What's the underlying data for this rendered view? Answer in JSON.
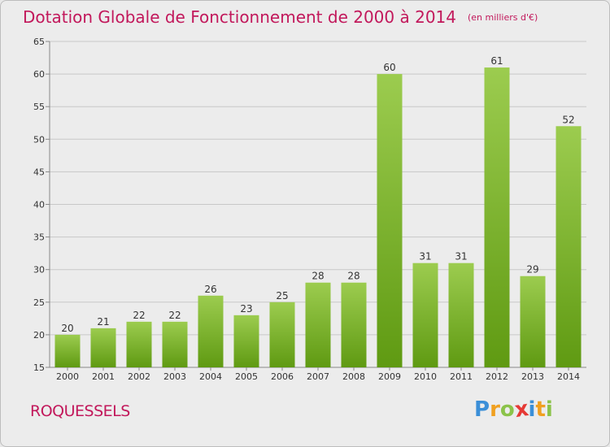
{
  "title": "Dotation Globale de Fonctionnement de 2000 à 2014",
  "unit_note": "(en milliers d'€)",
  "commune": "ROQUESSELS",
  "brand": {
    "text": "Proxiti",
    "letters": [
      {
        "char": "P",
        "color": "#3b8fd8"
      },
      {
        "char": "r",
        "color": "#f0a020"
      },
      {
        "char": "o",
        "color": "#8bc34a"
      },
      {
        "char": "x",
        "color": "#e53935"
      },
      {
        "char": "i",
        "color": "#3b8fd8"
      },
      {
        "char": "t",
        "color": "#f0a020"
      },
      {
        "char": "i",
        "color": "#8bc34a"
      }
    ]
  },
  "colors": {
    "title": "#c2185b",
    "bar_top": "#9ccc4f",
    "bar_bottom": "#5f9a12",
    "grid": "#c8c8c8",
    "axis_text": "#333333"
  },
  "chart_data": {
    "type": "bar",
    "title": "Dotation Globale de Fonctionnement de 2000 à 2014",
    "subtitle": "(en milliers d'€)",
    "xlabel": "",
    "ylabel": "",
    "categories": [
      "2000",
      "2001",
      "2002",
      "2003",
      "2004",
      "2005",
      "2006",
      "2007",
      "2008",
      "2009",
      "2010",
      "2011",
      "2012",
      "2013",
      "2014"
    ],
    "values": [
      20,
      21,
      22,
      22,
      26,
      23,
      25,
      28,
      28,
      60,
      31,
      31,
      61,
      29,
      52
    ],
    "ylim": [
      15,
      65
    ],
    "yticks": [
      15,
      20,
      25,
      30,
      35,
      40,
      45,
      50,
      55,
      60,
      65
    ],
    "grid": true,
    "legend": "none"
  }
}
